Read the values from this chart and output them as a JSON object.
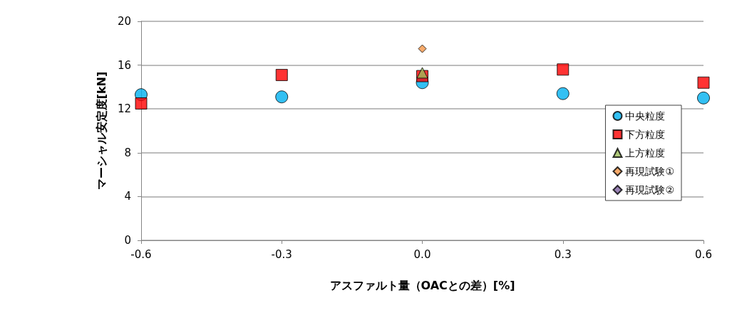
{
  "chart_data": {
    "type": "scatter",
    "xlabel": "アスファルト量（OACとの差）[%]",
    "ylabel": "マーシャル安定度[kN]",
    "xlim": [
      -0.6,
      0.6
    ],
    "xticks": [
      -0.6,
      -0.3,
      {
        "value": 0,
        "label": "0.0"
      },
      0.3,
      0.6
    ],
    "ylim": [
      0,
      20
    ],
    "yticks": [
      0,
      4,
      8,
      12,
      16,
      20
    ],
    "grid": "y",
    "legend": "right",
    "series": [
      {
        "name": "中央粒度",
        "color": "#00b0f0",
        "marker": "circle",
        "x": [
          -0.6,
          -0.3,
          0,
          0.3,
          0.6
        ],
        "values": [
          13.3,
          13.1,
          14.4,
          13.4,
          13.0
        ]
      },
      {
        "name": "下方粒度",
        "color": "#ff0000",
        "marker": "square",
        "x": [
          -0.6,
          -0.3,
          0,
          0.3,
          0.6
        ],
        "values": [
          12.5,
          15.1,
          15.0,
          15.6,
          14.4
        ]
      },
      {
        "name": "上方粒度",
        "color": "#9bbb59",
        "marker": "triangle",
        "x": [
          0
        ],
        "values": [
          15.3
        ]
      },
      {
        "name": "再現試験①",
        "color": "#f79646",
        "marker": "diamond",
        "x": [
          0
        ],
        "values": [
          17.5
        ]
      },
      {
        "name": "再現試験②",
        "color": "#8064a2",
        "marker": "diamond"
      }
    ]
  }
}
